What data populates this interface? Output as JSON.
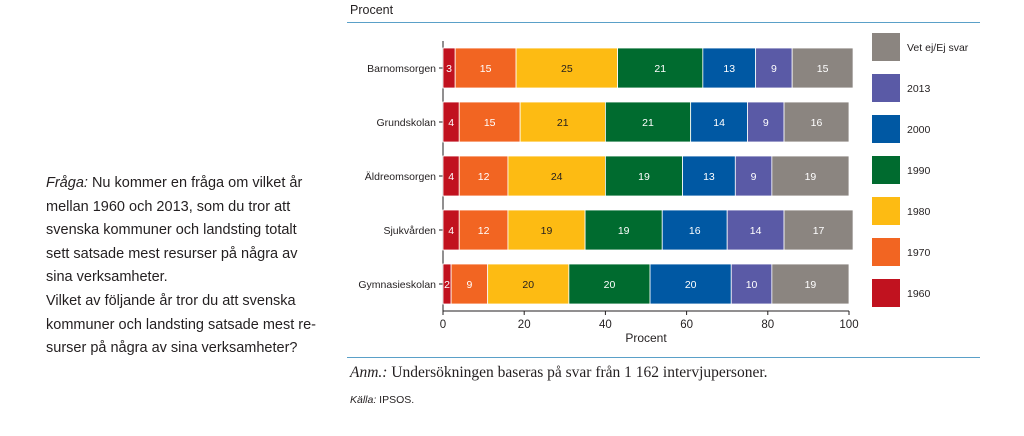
{
  "question": {
    "label": "Fråga:",
    "lines_first": " Nu kommer en fråga om vilket år",
    "lines": [
      "mellan 1960 och 2013, som du tror att",
      "svenska kommuner och landsting totalt",
      "sett satsade mest resurser på några av",
      "sina verksamheter.",
      "Vilket av följande år tror du att svenska",
      "kommuner och landsting satsade mest re-",
      "surser på några av sina verksamheter?"
    ]
  },
  "note": {
    "label": "Anm.:",
    "text": " Undersökningen baseras på svar från 1 162 intervjupersoner."
  },
  "source": {
    "label": "Källa:",
    "text": " IPSOS."
  },
  "chart_data": {
    "type": "bar",
    "orientation": "horizontal",
    "stacked": true,
    "title": "Procent",
    "xlabel": "Procent",
    "ylabel": "",
    "xlim": [
      0,
      100
    ],
    "xticks": [
      0,
      20,
      40,
      60,
      80,
      100
    ],
    "categories": [
      "Barnomsorgen",
      "Grundskolan",
      "Äldreomsorgen",
      "Sjukvården",
      "Gymnasieskolan"
    ],
    "series": [
      {
        "name": "1960",
        "color": "#c1121f",
        "values": [
          3,
          4,
          4,
          4,
          2
        ]
      },
      {
        "name": "1970",
        "color": "#f26522",
        "values": [
          15,
          15,
          12,
          12,
          9
        ]
      },
      {
        "name": "1980",
        "color": "#fdbb13",
        "values": [
          25,
          21,
          24,
          19,
          20
        ]
      },
      {
        "name": "1990",
        "color": "#006b2f",
        "values": [
          21,
          21,
          19,
          19,
          20
        ]
      },
      {
        "name": "2000",
        "color": "#0058a3",
        "values": [
          13,
          14,
          13,
          16,
          20
        ]
      },
      {
        "name": "2013",
        "color": "#5a5aa6",
        "values": [
          9,
          9,
          9,
          14,
          10
        ]
      },
      {
        "name": "Vet ej/Ej svar",
        "color": "#8b8580",
        "values": [
          15,
          16,
          19,
          17,
          19
        ]
      }
    ],
    "label_colors": {
      "1960": "#ffffff",
      "1970": "#ffffff",
      "1980": "#231f20",
      "1990": "#ffffff",
      "2000": "#ffffff",
      "2013": "#ffffff",
      "Vet ej/Ej svar": "#ffffff"
    },
    "legend_order": [
      "Vet ej/Ej svar",
      "2013",
      "2000",
      "1990",
      "1980",
      "1970",
      "1960"
    ],
    "legend_position": "right",
    "grid": false
  }
}
